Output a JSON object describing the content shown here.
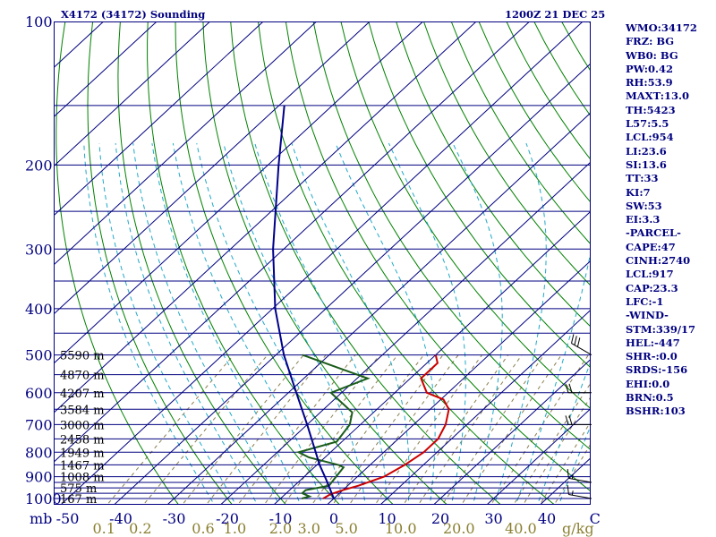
{
  "chart_data": {
    "type": "skew-t",
    "title": "X4172 (34172) Sounding",
    "datetime": "1200Z 21 DEC 25",
    "pressure_axis": {
      "unit": "mb",
      "range": [
        1000,
        100
      ],
      "ticks": [
        100,
        200,
        300,
        400,
        500,
        600,
        700,
        800,
        900,
        1000
      ]
    },
    "temperature_axis": {
      "unit": "C",
      "range": [
        -50,
        50
      ],
      "ticks": [
        -50,
        -40,
        -30,
        -20,
        -10,
        0,
        10,
        20,
        30,
        40
      ]
    },
    "mixing_ratio_axis": {
      "unit": "g/kg",
      "ticks": [
        "0.1",
        "0.2",
        "0.6",
        "1.0",
        "2.0",
        "3.0",
        "5.0",
        "10.0",
        "20.0",
        "40.0"
      ]
    },
    "height_labels": [
      {
        "p": 500,
        "label": "5590 m"
      },
      {
        "p": 550,
        "label": "4870 m"
      },
      {
        "p": 600,
        "label": "4207 m"
      },
      {
        "p": 650,
        "label": "3584 m"
      },
      {
        "p": 700,
        "label": "3000 m"
      },
      {
        "p": 750,
        "label": "2458 m"
      },
      {
        "p": 800,
        "label": "1949 m"
      },
      {
        "p": 850,
        "label": "1467 m"
      },
      {
        "p": 900,
        "label": "1008 m"
      },
      {
        "p": 950,
        "label": "575 m"
      },
      {
        "p": 1000,
        "label": "167 m"
      }
    ],
    "series": [
      {
        "name": "temperature",
        "color": "#cc0000",
        "points": [
          {
            "p": 1000,
            "t": -2.0
          },
          {
            "p": 980,
            "t": -1.5
          },
          {
            "p": 960,
            "t": 0.0
          },
          {
            "p": 940,
            "t": 2.0
          },
          {
            "p": 900,
            "t": 5.0
          },
          {
            "p": 850,
            "t": 6.5
          },
          {
            "p": 800,
            "t": 7.5
          },
          {
            "p": 750,
            "t": 7.5
          },
          {
            "p": 700,
            "t": 6.0
          },
          {
            "p": 650,
            "t": 3.5
          },
          {
            "p": 620,
            "t": 0.5
          },
          {
            "p": 600,
            "t": -4.0
          },
          {
            "p": 560,
            "t": -8.0
          },
          {
            "p": 520,
            "t": -8.0
          },
          {
            "p": 500,
            "t": -10.0
          }
        ]
      },
      {
        "name": "dewpoint",
        "color": "#1a5c1a",
        "points": [
          {
            "p": 1000,
            "t": -6.0
          },
          {
            "p": 990,
            "t": -5.0
          },
          {
            "p": 975,
            "t": -7.0
          },
          {
            "p": 960,
            "t": -7.0
          },
          {
            "p": 940,
            "t": -3.5
          },
          {
            "p": 900,
            "t": -4.0
          },
          {
            "p": 860,
            "t": -4.5
          },
          {
            "p": 850,
            "t": -6.0
          },
          {
            "p": 820,
            "t": -13.0
          },
          {
            "p": 800,
            "t": -16.0
          },
          {
            "p": 760,
            "t": -11.0
          },
          {
            "p": 700,
            "t": -12.0
          },
          {
            "p": 660,
            "t": -14.0
          },
          {
            "p": 600,
            "t": -22.0
          },
          {
            "p": 560,
            "t": -18.0
          },
          {
            "p": 500,
            "t": -35.0
          }
        ]
      },
      {
        "name": "parcel",
        "color": "#00008b",
        "points": [
          {
            "p": 1000,
            "t": 0.0
          },
          {
            "p": 917,
            "t": -5.0
          },
          {
            "p": 850,
            "t": -9.5
          },
          {
            "p": 700,
            "t": -20.0
          },
          {
            "p": 600,
            "t": -28.5
          },
          {
            "p": 500,
            "t": -38.5
          },
          {
            "p": 400,
            "t": -49.5
          },
          {
            "p": 300,
            "t": -62.0
          },
          {
            "p": 200,
            "t": -78.0
          },
          {
            "p": 150,
            "t": -89.0
          }
        ]
      }
    ],
    "winds": [
      {
        "p": 500,
        "dir": 300,
        "speed_kt": 30
      },
      {
        "p": 600,
        "dir": 270,
        "speed_kt": 20
      },
      {
        "p": 700,
        "dir": 270,
        "speed_kt": 20
      },
      {
        "p": 925,
        "dir": 280,
        "speed_kt": 5
      },
      {
        "p": 1000,
        "dir": 280,
        "speed_kt": 5
      }
    ]
  },
  "stats": [
    "WMO:34172",
    "FRZ: BG",
    "WB0: BG",
    "PW:0.42",
    "RH:53.9",
    "MAXT:13.0",
    "TH:5423",
    "L57:5.5",
    "LCL:954",
    "LI:23.6",
    "SI:13.6",
    "TT:33",
    "KI:7",
    "SW:53",
    "EI:3.3",
    "-PARCEL-",
    "CAPE:47",
    "CINH:2740",
    "LCL:917",
    "CAP:23.3",
    "LFC:-1",
    "-WIND-",
    "STM:339/17",
    "HEL:-447",
    "SHR-:0.0",
    "SRDS:-156",
    "EHI:0.0",
    "BRN:0.5",
    "BSHR:103"
  ],
  "colors": {
    "isobar": "#000080",
    "isotherm": "#000080",
    "dry_adiabat": "#008000",
    "moist_adiabat": "#20a8c8",
    "mixing_ratio": "#8a7f50",
    "text": "#000080",
    "mix_label": "#8a7f30",
    "wind": "#000000",
    "frame": "#000080"
  }
}
